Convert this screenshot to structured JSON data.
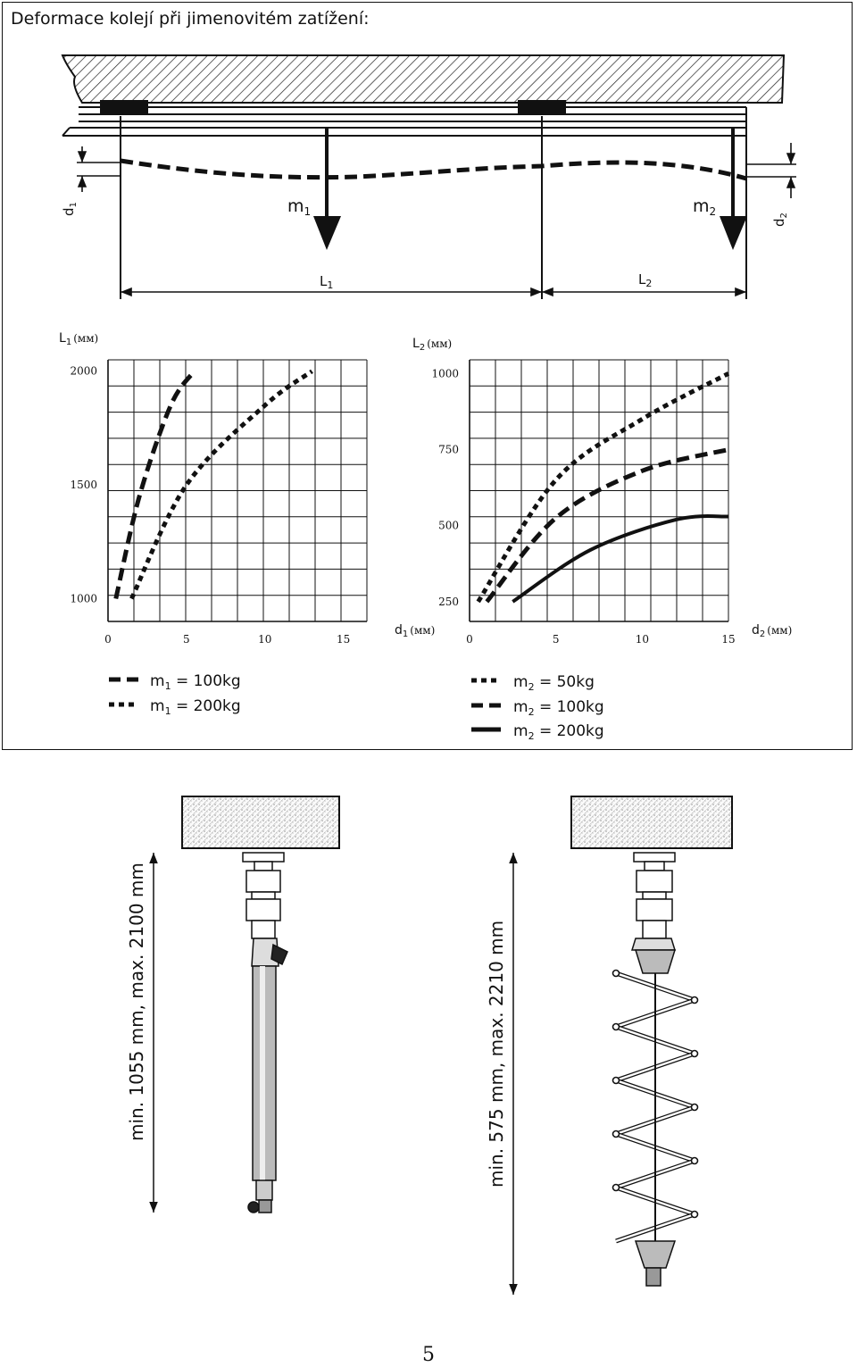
{
  "title": "Deformace kolejí při jimenovitém zatížení:",
  "page_number": "5",
  "diagram": {
    "d1": "d",
    "d1_sub": "1",
    "d2": "d",
    "d2_sub": "2",
    "m1": "m",
    "m1_sub": "1",
    "m2": "m",
    "m2_sub": "2",
    "L1": "L",
    "L1_sub": "1",
    "L2": "L",
    "L2_sub": "2"
  },
  "chart_data": [
    {
      "type": "line",
      "y_axis_label": "L",
      "y_axis_label_sub": "1",
      "y_unit": "(мм)",
      "x_axis_label": "d",
      "x_axis_label_sub": "1",
      "x_unit": "(мм)",
      "x_ticks": [
        "0",
        "5",
        "10",
        "15"
      ],
      "y_ticks": [
        "2000",
        "1500",
        "1000"
      ],
      "xlim": [
        0,
        16.5
      ],
      "ylim": [
        900,
        2050
      ],
      "series": [
        {
          "legend": "m",
          "legend_sub": "1",
          "legend_value": " = 100kg",
          "style": "dash",
          "x": [
            0.5,
            2,
            4,
            5.5
          ],
          "y": [
            1000,
            1450,
            1850,
            2000
          ]
        },
        {
          "legend": "m",
          "legend_sub": "1",
          "legend_value": " = 200kg",
          "style": "dot",
          "x": [
            1.5,
            5,
            10,
            13
          ],
          "y": [
            1000,
            1500,
            1850,
            2000
          ]
        }
      ]
    },
    {
      "type": "line",
      "y_axis_label": "L",
      "y_axis_label_sub": "2",
      "y_unit": "(мм)",
      "x_axis_label": "d",
      "x_axis_label_sub": "2",
      "x_unit": "(мм)",
      "x_ticks": [
        "0",
        "5",
        "10",
        "15"
      ],
      "y_ticks": [
        "1000",
        "750",
        "500",
        "250"
      ],
      "xlim": [
        0,
        15
      ],
      "ylim": [
        185,
        1045
      ],
      "series": [
        {
          "legend": "m",
          "legend_sub": "2",
          "legend_value": " = 50kg",
          "style": "dot",
          "x": [
            0.5,
            5,
            10,
            15
          ],
          "y": [
            250,
            650,
            850,
            1000
          ]
        },
        {
          "legend": "m",
          "legend_sub": "2",
          "legend_value": " = 100kg",
          "style": "dash",
          "x": [
            1,
            5,
            10,
            15
          ],
          "y": [
            250,
            525,
            680,
            750
          ]
        },
        {
          "legend": "m",
          "legend_sub": "2",
          "legend_value": " = 200kg",
          "style": "solid",
          "x": [
            2.5,
            7,
            12,
            15
          ],
          "y": [
            250,
            420,
            520,
            530
          ]
        }
      ]
    }
  ],
  "dimensions": {
    "left": "min. 1055 mm, max. 2100 mm",
    "right": "min. 575 mm, max. 2210 mm"
  }
}
